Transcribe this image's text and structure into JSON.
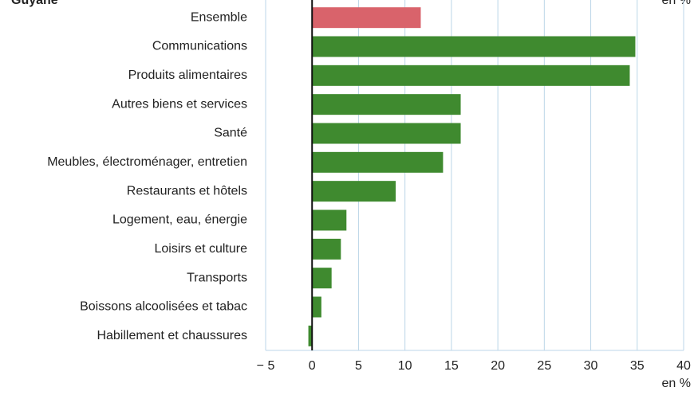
{
  "chart_data": {
    "type": "bar",
    "orientation": "horizontal",
    "title": "Guyane",
    "annotation": "en %",
    "xlabel": "en %",
    "categories": [
      "Ensemble",
      "Communications",
      "Produits alimentaires",
      "Autres biens et services",
      "Santé",
      "Meubles, électroménager, entretien",
      "Restaurants et hôtels",
      "Logement, eau, énergie",
      "Loisirs et culture",
      "Transports",
      "Boissons alcoolisées et tabac",
      "Habillement et chaussures"
    ],
    "values": [
      11.7,
      34.8,
      34.2,
      16.0,
      16.0,
      14.1,
      9.0,
      3.7,
      3.1,
      2.1,
      1.0,
      -0.4
    ],
    "colors": [
      "#d9636b",
      "#3f8a2f",
      "#3f8a2f",
      "#3f8a2f",
      "#3f8a2f",
      "#3f8a2f",
      "#3f8a2f",
      "#3f8a2f",
      "#3f8a2f",
      "#3f8a2f",
      "#3f8a2f",
      "#3f8a2f"
    ],
    "xlim": [
      -5,
      40
    ],
    "xticks": [
      {
        "value": -5,
        "label": "− 5"
      },
      0,
      5,
      10,
      15,
      20,
      25,
      30,
      35,
      40
    ],
    "grid": true
  }
}
